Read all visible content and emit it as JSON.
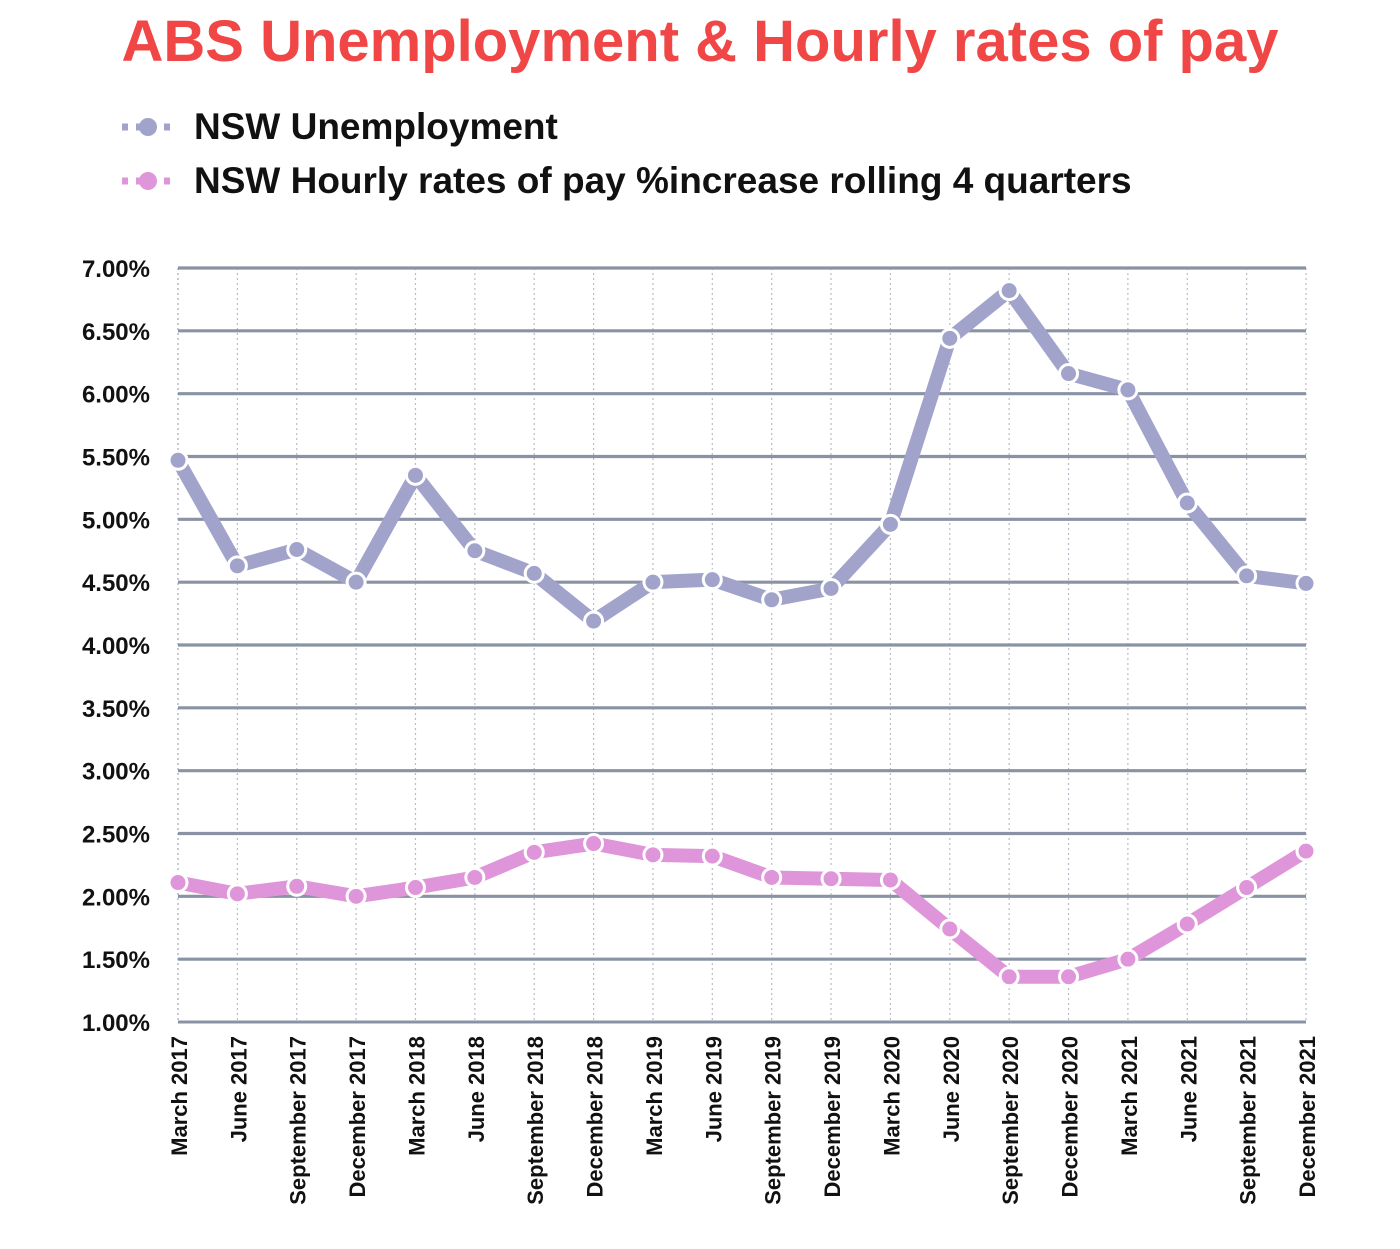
{
  "title": "ABS Unemployment & Hourly rates of pay",
  "colors": {
    "title": "#f04646",
    "unemployment": "#a1a3cb",
    "pay": "#df95d9",
    "grid": "#8a93a5"
  },
  "legend": {
    "items": [
      {
        "label": "NSW Unemployment",
        "color": "#a1a3cb"
      },
      {
        "label": "NSW Hourly rates of pay %increase rolling 4 quarters",
        "color": "#df95d9"
      }
    ]
  },
  "chart_data": {
    "type": "line",
    "title": "ABS Unemployment & Hourly rates of pay",
    "xlabel": "",
    "ylabel": "",
    "ylim": [
      1.0,
      7.0
    ],
    "grid": true,
    "legend_position": "top-left",
    "y_ticks": [
      "1.00%",
      "1.50%",
      "2.00%",
      "2.50%",
      "3.00%",
      "3.50%",
      "4.00%",
      "4.50%",
      "5.00%",
      "5.50%",
      "6.00%",
      "6.50%",
      "7.00%"
    ],
    "categories": [
      "March 2017",
      "June 2017",
      "September 2017",
      "December 2017",
      "March 2018",
      "June 2018",
      "September 2018",
      "December 2018",
      "March 2019",
      "June 2019",
      "September 2019",
      "December 2019",
      "March 2020",
      "June 2020",
      "September 2020",
      "December 2020",
      "March 2021",
      "June 2021",
      "September 2021",
      "December 2021"
    ],
    "series": [
      {
        "name": "NSW Unemployment",
        "values": [
          5.47,
          4.63,
          4.76,
          4.5,
          5.35,
          4.75,
          4.57,
          4.19,
          4.5,
          4.52,
          4.36,
          4.45,
          4.96,
          6.44,
          6.82,
          6.16,
          6.03,
          5.13,
          4.55,
          4.49
        ]
      },
      {
        "name": "NSW Hourly rates of pay %increase rolling 4 quarters",
        "values": [
          2.11,
          2.02,
          2.08,
          2.0,
          2.07,
          2.15,
          2.35,
          2.42,
          2.33,
          2.32,
          2.15,
          2.14,
          2.13,
          1.74,
          1.36,
          1.36,
          1.5,
          1.78,
          2.07,
          2.36
        ]
      }
    ]
  }
}
